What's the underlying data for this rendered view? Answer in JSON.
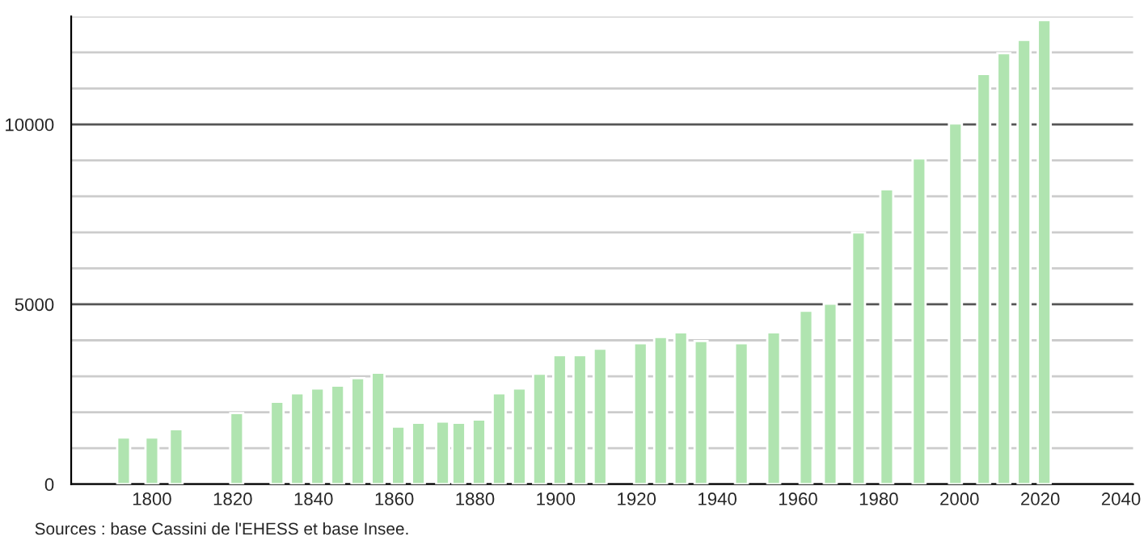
{
  "chart_data": {
    "type": "bar",
    "x": [
      1793,
      1800,
      1806,
      1821,
      1831,
      1836,
      1841,
      1846,
      1851,
      1856,
      1861,
      1866,
      1872,
      1876,
      1881,
      1886,
      1891,
      1896,
      1901,
      1906,
      1911,
      1921,
      1926,
      1931,
      1936,
      1946,
      1954,
      1962,
      1968,
      1975,
      1982,
      1990,
      1999,
      2006,
      2011,
      2016,
      2021
    ],
    "values": [
      1300,
      1300,
      1530,
      1980,
      2290,
      2530,
      2660,
      2740,
      2950,
      3100,
      1600,
      1710,
      1740,
      1710,
      1800,
      2530,
      2660,
      3070,
      3590,
      3590,
      3770,
      3920,
      4090,
      4220,
      3980,
      3920,
      4220,
      4820,
      5020,
      7000,
      8200,
      9060,
      10030,
      11400,
      11980,
      12350,
      12900
    ],
    "color": "#b0e4b0",
    "xlim": [
      1780,
      2043
    ],
    "xticks": [
      1800,
      1820,
      1840,
      1860,
      1880,
      1900,
      1920,
      1940,
      1960,
      1980,
      2000,
      2020,
      2040
    ],
    "ylim": [
      0,
      13000
    ],
    "yticks": [
      0,
      {
        "value": 1000,
        "label": null
      },
      {
        "value": 2000,
        "label": null
      },
      {
        "value": 3000,
        "label": null
      },
      {
        "value": 4000,
        "label": null
      },
      5000,
      {
        "value": 6000,
        "label": null
      },
      {
        "value": 7000,
        "label": null
      },
      {
        "value": 8000,
        "label": null
      },
      {
        "value": 9000,
        "label": null
      },
      10000,
      {
        "value": 11000,
        "label": null
      },
      {
        "value": 12000,
        "label": null
      },
      {
        "value": 13000,
        "label": null
      }
    ],
    "grid": "y",
    "annotations": [
      "Sources : base Cassini de l'EHESS et base Insee."
    ]
  }
}
